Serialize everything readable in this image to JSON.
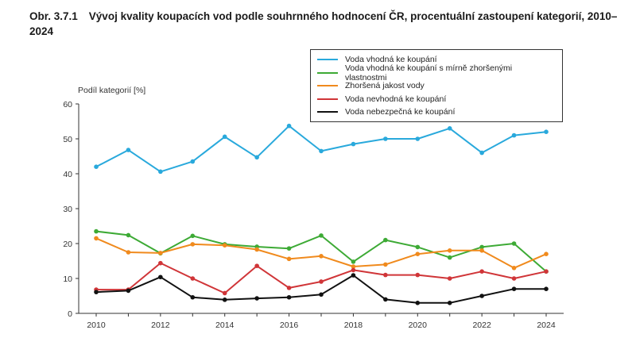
{
  "title": {
    "number": "Obr. 3.7.1",
    "text": "Vývoj kvality koupacích vod podle souhrnného hodnocení ČR, procentuální zastoupení kategorií, 2010–2024"
  },
  "chart_data": {
    "type": "line",
    "ylabel": "Podíl kategorií [%]",
    "xlabel": "",
    "ylim": [
      0,
      60
    ],
    "yticks": [
      0,
      10,
      20,
      30,
      40,
      50,
      60
    ],
    "xlim": [
      2010,
      2024
    ],
    "xticks": [
      2010,
      2012,
      2014,
      2016,
      2018,
      2020,
      2022,
      2024
    ],
    "x": [
      2010,
      2011,
      2012,
      2013,
      2014,
      2015,
      2016,
      2017,
      2018,
      2019,
      2020,
      2021,
      2022,
      2023,
      2024
    ],
    "legend_position": "top-right",
    "series": [
      {
        "name": "Voda vhodná ke koupání",
        "color": "#29a9dc",
        "markers": true,
        "values": [
          42,
          46.8,
          40.6,
          43.5,
          50.6,
          44.7,
          53.7,
          46.5,
          48.5,
          50,
          50,
          53,
          46,
          51,
          52
        ]
      },
      {
        "name": "Voda vhodná ke koupání s mírně zhoršenými vlastnostmi",
        "color": "#3daa35",
        "markers": true,
        "values": [
          23.5,
          22.4,
          17.2,
          22.2,
          19.8,
          19.1,
          18.6,
          22.3,
          14.8,
          21,
          19,
          16,
          19,
          20,
          12
        ]
      },
      {
        "name": "Zhoršená jakost vody",
        "color": "#f08a1d",
        "markers": true,
        "values": [
          21.5,
          17.5,
          17.3,
          19.8,
          19.5,
          18.3,
          15.6,
          16.4,
          13.4,
          14,
          17,
          18,
          18,
          13,
          17
        ]
      },
      {
        "name": "Voda nevhodná ke koupání",
        "color": "#d03538",
        "markers": true,
        "values": [
          6.8,
          6.8,
          14.4,
          10,
          5.8,
          13.6,
          7.3,
          9.1,
          12.4,
          11,
          11,
          10,
          12,
          10,
          12
        ]
      },
      {
        "name": "Voda nebezpečná ke koupání",
        "color": "#111111",
        "markers": false,
        "values": [
          6.1,
          6.5,
          10.4,
          4.6,
          3.9,
          4.3,
          4.6,
          5.4,
          10.9,
          4,
          3,
          3,
          5,
          7,
          7
        ]
      }
    ]
  }
}
